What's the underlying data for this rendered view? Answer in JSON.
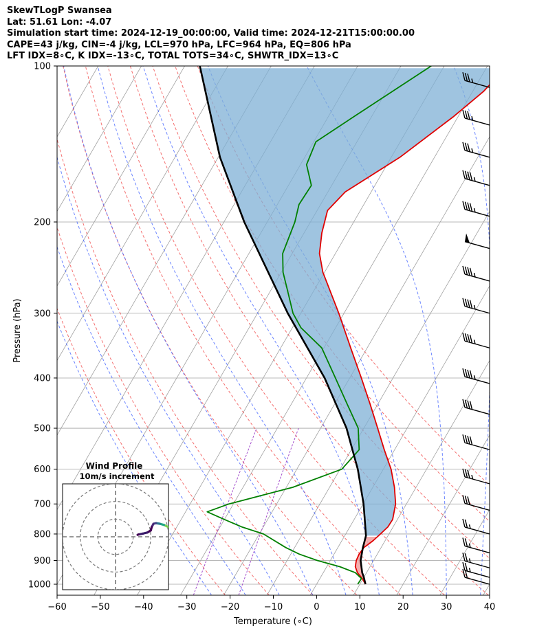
{
  "header": {
    "line1": "SkewTLogP Swansea",
    "line2": "Lat: 51.61   Lon: -4.07",
    "line3": "Simulation start time: 2024-12-19_00:00:00, Valid time: 2024-12-21T15:00:00.00",
    "line4": "CAPE=43 j/kg, CIN=-4 j/kg, LCL=970 hPa, LFC=964 hPa, EQ=806 hPa",
    "line5": "LFT IDX=8∘C, K IDX=-13∘C, TOTAL TOTS=34∘C, SHWTR_IDX=13∘C"
  },
  "colors": {
    "temperature": "#e00000",
    "dewpoint": "#008000",
    "parcel": "#000000",
    "cape_fill": "#7fb0d5",
    "cin_fill": "#f2a0a0",
    "dry_adiabat": "#f04040",
    "moist_adiabat": "#3a5cff",
    "mixing_ratio": "#9a3cc8",
    "isotherm": "#a0a0a0",
    "isobar": "#a0a0a0"
  },
  "chart_data": {
    "type": "line",
    "xlabel": "Temperature (∘C)",
    "ylabel": "Pressure (hPa)",
    "xlim": [
      -60,
      40
    ],
    "ylim": [
      1050,
      100
    ],
    "yscale": "log",
    "grid": true,
    "x_ticks": [
      -60,
      -50,
      -40,
      -30,
      -20,
      -10,
      0,
      10,
      20,
      30,
      40
    ],
    "y_ticks": [
      100,
      200,
      300,
      400,
      500,
      600,
      700,
      800,
      900,
      1000
    ],
    "series": [
      {
        "key": "temperature",
        "points": [
          [
            1000,
            11.3
          ],
          [
            975,
            9.8
          ],
          [
            950,
            7.9
          ],
          [
            925,
            6.6
          ],
          [
            900,
            6.0
          ],
          [
            875,
            5.8
          ],
          [
            850,
            6.0
          ],
          [
            825,
            7.2
          ],
          [
            800,
            8.0
          ],
          [
            775,
            8.8
          ],
          [
            750,
            8.9
          ],
          [
            700,
            7.5
          ],
          [
            650,
            5.0
          ],
          [
            600,
            1.8
          ],
          [
            550,
            -2.4
          ],
          [
            500,
            -6.8
          ],
          [
            450,
            -11.7
          ],
          [
            400,
            -17.3
          ],
          [
            350,
            -23.8
          ],
          [
            300,
            -31.2
          ],
          [
            250,
            -40.4
          ],
          [
            230,
            -43.7
          ],
          [
            210,
            -45.9
          ],
          [
            190,
            -47.6
          ],
          [
            175,
            -46.0
          ],
          [
            150,
            -38.0
          ],
          [
            125,
            -31.0
          ],
          [
            112,
            -27.5
          ],
          [
            100,
            -25.5
          ]
        ]
      },
      {
        "key": "dewpoint",
        "points": [
          [
            1000,
            9.5
          ],
          [
            975,
            9.6
          ],
          [
            950,
            7.4
          ],
          [
            925,
            3.0
          ],
          [
            900,
            -3.0
          ],
          [
            875,
            -8.0
          ],
          [
            850,
            -12.0
          ],
          [
            800,
            -19.0
          ],
          [
            775,
            -25.0
          ],
          [
            750,
            -30.0
          ],
          [
            725,
            -35.0
          ],
          [
            700,
            -31.0
          ],
          [
            650,
            -18.5
          ],
          [
            600,
            -9.6
          ],
          [
            550,
            -8.2
          ],
          [
            500,
            -11.3
          ],
          [
            450,
            -17.0
          ],
          [
            400,
            -23.3
          ],
          [
            350,
            -30.5
          ],
          [
            320,
            -38.0
          ],
          [
            300,
            -41.8
          ],
          [
            270,
            -46.3
          ],
          [
            250,
            -49.6
          ],
          [
            230,
            -52.2
          ],
          [
            200,
            -53.6
          ],
          [
            185,
            -55.0
          ],
          [
            170,
            -54.7
          ],
          [
            155,
            -58.6
          ],
          [
            140,
            -59.5
          ],
          [
            125,
            -54.0
          ],
          [
            100,
            -43.0
          ]
        ]
      },
      {
        "key": "parcel",
        "points": [
          [
            1000,
            11.3
          ],
          [
            970,
            10.0
          ],
          [
            950,
            9.0
          ],
          [
            900,
            7.0
          ],
          [
            850,
            5.8
          ],
          [
            806,
            4.9
          ],
          [
            700,
            0.1
          ],
          [
            600,
            -5.9
          ],
          [
            500,
            -14.0
          ],
          [
            400,
            -25.8
          ],
          [
            300,
            -43.0
          ],
          [
            200,
            -65.3
          ],
          [
            150,
            -79.6
          ],
          [
            100,
            -96.5
          ]
        ]
      }
    ],
    "skew_x_per_decade": 69.5,
    "moist_adiabats_start_c": [
      -26,
      -18,
      -10,
      -2,
      6,
      14,
      22,
      30,
      38
    ],
    "dry_adiabats_theta_k": [
      250,
      260,
      270,
      280,
      290,
      300,
      310,
      320,
      330,
      340
    ],
    "mixing_ratio_g_per_kg": [
      0.4,
      1.0
    ],
    "isotherms_c": [
      -160,
      -150,
      -140,
      -130,
      -120,
      -110,
      -100,
      -90,
      -80,
      -70,
      -60,
      -50,
      -40,
      -30,
      -20,
      -10,
      0,
      10,
      20,
      30,
      40
    ],
    "wind_barbs": [
      {
        "p": 110,
        "speed_kt": 35,
        "dir": 260
      },
      {
        "p": 130,
        "speed_kt": 35,
        "dir": 260
      },
      {
        "p": 150,
        "speed_kt": 35,
        "dir": 260
      },
      {
        "p": 170,
        "speed_kt": 45,
        "dir": 260
      },
      {
        "p": 195,
        "speed_kt": 45,
        "dir": 260
      },
      {
        "p": 225,
        "speed_kt": 50,
        "dir": 260
      },
      {
        "p": 260,
        "speed_kt": 45,
        "dir": 260
      },
      {
        "p": 300,
        "speed_kt": 45,
        "dir": 260
      },
      {
        "p": 350,
        "speed_kt": 45,
        "dir": 260
      },
      {
        "p": 410,
        "speed_kt": 45,
        "dir": 260
      },
      {
        "p": 470,
        "speed_kt": 40,
        "dir": 260
      },
      {
        "p": 550,
        "speed_kt": 40,
        "dir": 260
      },
      {
        "p": 640,
        "speed_kt": 35,
        "dir": 260
      },
      {
        "p": 720,
        "speed_kt": 30,
        "dir": 260
      },
      {
        "p": 800,
        "speed_kt": 25,
        "dir": 255
      },
      {
        "p": 870,
        "speed_kt": 25,
        "dir": 255
      },
      {
        "p": 930,
        "speed_kt": 25,
        "dir": 255
      },
      {
        "p": 970,
        "speed_kt": 25,
        "dir": 255
      },
      {
        "p": 1000,
        "speed_kt": 20,
        "dir": 255
      }
    ],
    "hodograph": {
      "title": "Wind Profile",
      "subtitle": "10m/s increment",
      "rings_ms": [
        10,
        20,
        30
      ],
      "extent_ms": 30,
      "trace_uv_ms": [
        [
          32.5,
          -7.8
        ],
        [
          31.7,
          -5.3
        ],
        [
          30.0,
          -5.5
        ],
        [
          27.5,
          -6.7
        ],
        [
          25.0,
          -7.4
        ],
        [
          23.0,
          -7.7
        ],
        [
          21.5,
          -7.4
        ],
        [
          20.5,
          -5.5
        ],
        [
          20.0,
          -3.6
        ],
        [
          18.0,
          -2.4
        ],
        [
          15.5,
          -1.8
        ],
        [
          13.0,
          -1.3
        ],
        [
          12.5,
          -1.1
        ]
      ],
      "trace_colors": [
        "#fde725",
        "#c5e021",
        "#7ad151",
        "#22a884",
        "#2a788e",
        "#414487",
        "#482878",
        "#440154",
        "#440154",
        "#3b1c6b",
        "#3b1c6b",
        "#440154",
        "#440154"
      ]
    }
  }
}
